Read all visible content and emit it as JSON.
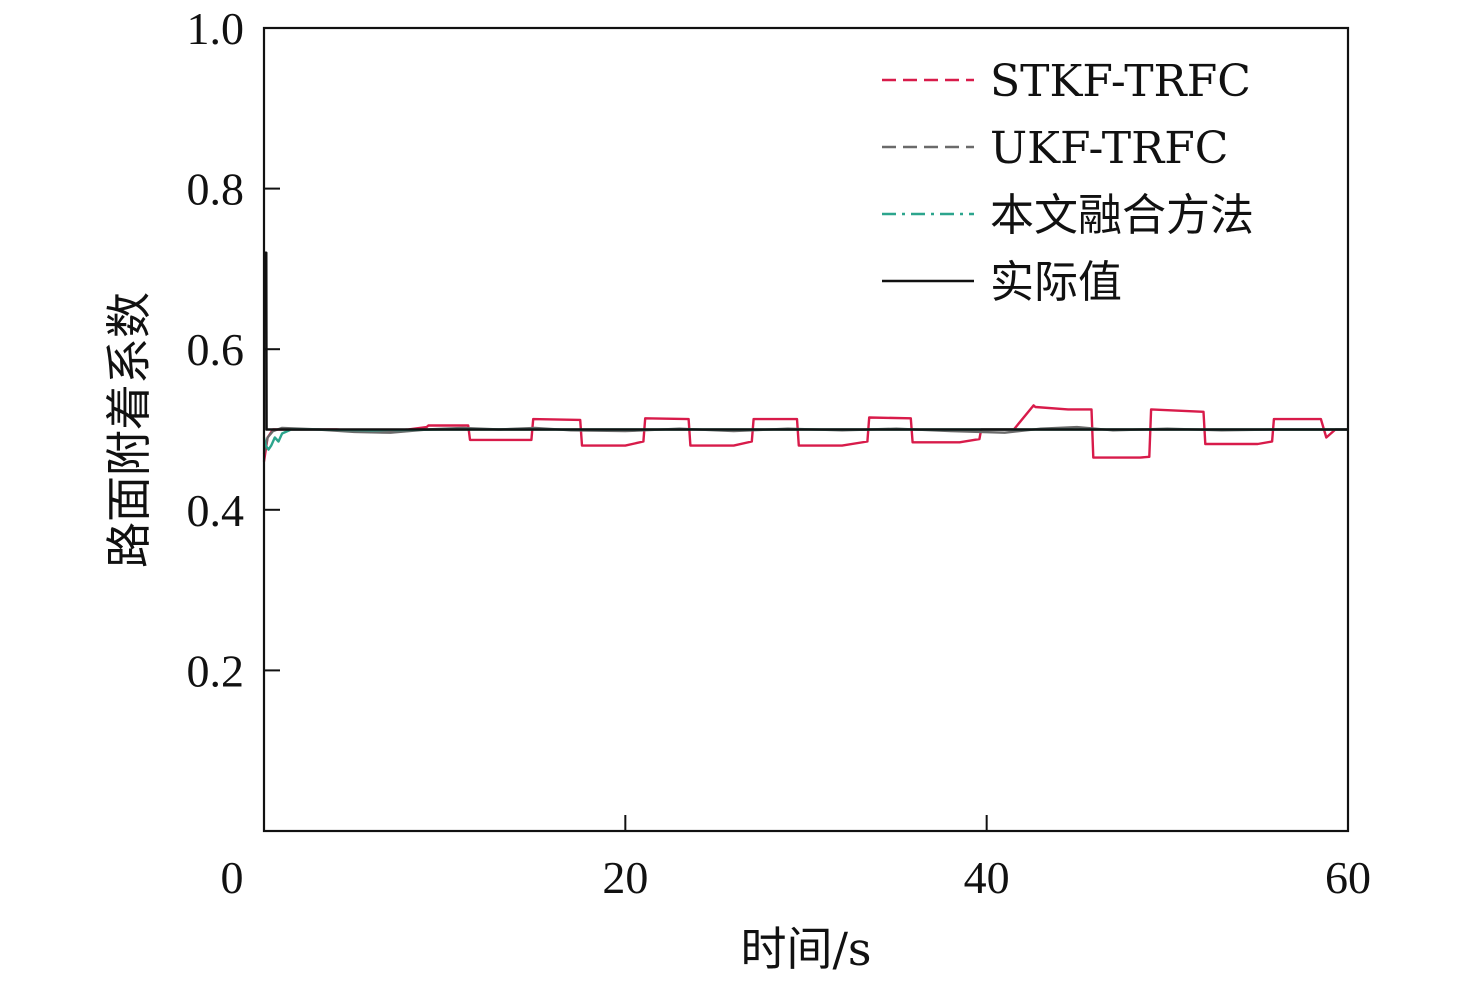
{
  "chart_data": {
    "type": "line",
    "xlabel": "时间/s",
    "ylabel": "路面附着系数",
    "xlim": [
      0,
      60
    ],
    "ylim": [
      0,
      1.0
    ],
    "xticks": [
      0,
      20,
      40,
      60
    ],
    "yticks": [
      0.2,
      0.4,
      0.6,
      0.8,
      1.0
    ],
    "xtick_labels": [
      "0",
      "20",
      "40",
      "60"
    ],
    "ytick_labels": [
      "0.2",
      "0.4",
      "0.6",
      "0.8",
      "1.0"
    ],
    "grid": false,
    "legend_position": "top-right",
    "series": [
      {
        "name": "STKF-TRFC",
        "color": "#d81b4a",
        "style": "dashed",
        "x": [
          0,
          0.2,
          0.5,
          1,
          2,
          4,
          6,
          8,
          9,
          9.1,
          11.3,
          11.4,
          13.5,
          14.8,
          14.9,
          17.5,
          17.6,
          20.0,
          21.0,
          21.1,
          23.5,
          23.6,
          26.0,
          27.0,
          27.1,
          29.5,
          29.6,
          32.0,
          33.4,
          33.5,
          35.8,
          35.9,
          38.5,
          39.6,
          39.7,
          41.5,
          42.6,
          42.7,
          44.5,
          45.8,
          45.9,
          48.5,
          49.0,
          49.1,
          52.0,
          52.1,
          55.0,
          55.8,
          55.9,
          58.5,
          58.8,
          59.3,
          60
        ],
        "y": [
          0.46,
          0.49,
          0.5,
          0.5,
          0.5,
          0.5,
          0.497,
          0.5,
          0.503,
          0.505,
          0.505,
          0.487,
          0.487,
          0.487,
          0.513,
          0.512,
          0.48,
          0.48,
          0.485,
          0.514,
          0.513,
          0.48,
          0.48,
          0.485,
          0.513,
          0.513,
          0.48,
          0.48,
          0.485,
          0.515,
          0.514,
          0.484,
          0.484,
          0.488,
          0.5,
          0.5,
          0.53,
          0.528,
          0.525,
          0.525,
          0.465,
          0.465,
          0.466,
          0.525,
          0.522,
          0.482,
          0.482,
          0.485,
          0.513,
          0.513,
          0.49,
          0.5,
          0.5
        ]
      },
      {
        "name": "UKF-TRFC",
        "color": "#6a6a6a",
        "style": "dashed",
        "x": [
          0,
          0.2,
          0.5,
          1,
          3,
          5,
          7,
          9,
          11,
          13,
          15,
          17,
          20,
          23,
          26,
          29,
          32,
          35,
          38,
          41,
          43,
          45,
          47,
          50,
          53,
          56,
          58,
          60
        ],
        "y": [
          0.47,
          0.49,
          0.498,
          0.502,
          0.5,
          0.497,
          0.496,
          0.5,
          0.502,
          0.5,
          0.502,
          0.499,
          0.498,
          0.501,
          0.498,
          0.501,
          0.499,
          0.501,
          0.498,
          0.496,
          0.501,
          0.503,
          0.499,
          0.501,
          0.499,
          0.5,
          0.5,
          0.5
        ]
      },
      {
        "name": "本文融合方法",
        "color": "#2ca58d",
        "style": "dashdot",
        "x": [
          0,
          0.1,
          0.25,
          0.4,
          0.6,
          0.8,
          1.0,
          1.5,
          3,
          6,
          10,
          20,
          30,
          40,
          50,
          60
        ],
        "y": [
          0.49,
          0.48,
          0.475,
          0.48,
          0.49,
          0.485,
          0.495,
          0.5,
          0.5,
          0.499,
          0.5,
          0.5,
          0.5,
          0.5,
          0.5,
          0.5
        ]
      },
      {
        "name": "实际值",
        "color": "#111111",
        "style": "solid",
        "x": [
          0,
          0.12,
          0.14,
          0.5,
          60
        ],
        "y": [
          0.72,
          0.72,
          0.5,
          0.5,
          0.5
        ]
      }
    ]
  }
}
